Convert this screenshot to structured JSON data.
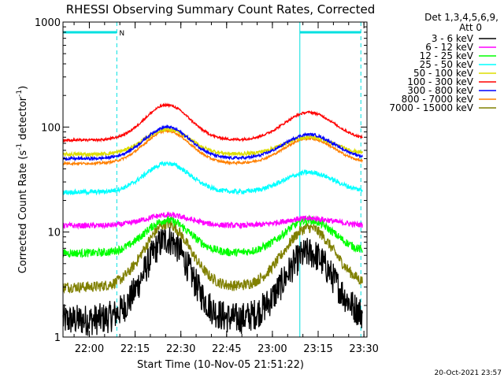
{
  "chart_data": {
    "type": "line",
    "title": "RHESSI Observing Summary Count Rates, Corrected",
    "xlabel": "Start Time (10-Nov-05 21:51:22)",
    "ylabel_main": "Corrected Count Rate (s",
    "ylabel_sup1": "-1",
    "ylabel_mid": " detector",
    "ylabel_sup2": "-1",
    "ylabel_end": ")",
    "yscale": "log",
    "ylim": [
      1,
      1000
    ],
    "xlim": [
      "21:51:22",
      "23:31:00"
    ],
    "x_ticks": [
      "22:00",
      "22:15",
      "22:30",
      "22:45",
      "23:00",
      "23:15",
      "23:30"
    ],
    "y_ticks": [
      "1",
      "10",
      "100",
      "1000"
    ],
    "legend_header": [
      "Det 1,3,4,5,6,9,",
      "Att 0"
    ],
    "legend_placement": "right",
    "timestamp": "20-Oct-2021 23:57",
    "flag_label": "N",
    "markers": {
      "night_bar_1": [
        "21:51:22",
        "22:09:00"
      ],
      "night_bar_2": [
        "23:09:00",
        "23:29:00"
      ],
      "dashed_lines": [
        "22:09:00",
        "23:29:00"
      ],
      "solid_lines": [
        "21:51:22",
        "23:09:00"
      ],
      "color": "#00e0e0"
    },
    "series": [
      {
        "name": "3 - 6 keV",
        "color": "#000000",
        "base": 1.45,
        "peak1": 8.5,
        "peak2": 6.3,
        "jitter": 0.35
      },
      {
        "name": "6 - 12 keV",
        "color": "#ff00ff",
        "base": 11.5,
        "peak1": 14.5,
        "peak2": 13.5,
        "jitter": 0.06
      },
      {
        "name": "12 - 25 keV",
        "color": "#00ff00",
        "base": 6.3,
        "peak1": 13.0,
        "peak2": 13.0,
        "jitter": 0.09
      },
      {
        "name": "25 - 50 keV",
        "color": "#00ffff",
        "base": 24,
        "peak1": 45,
        "peak2": 37,
        "jitter": 0.05
      },
      {
        "name": "50 - 100 keV",
        "color": "#dddd00",
        "base": 55,
        "peak1": 95,
        "peak2": 80,
        "jitter": 0.04
      },
      {
        "name": "100 - 300 keV",
        "color": "#ff0000",
        "base": 75,
        "peak1": 162,
        "peak2": 138,
        "jitter": 0.025
      },
      {
        "name": "300 - 800 keV",
        "color": "#0000ff",
        "base": 50,
        "peak1": 100,
        "peak2": 85,
        "jitter": 0.03
      },
      {
        "name": "800 - 7000 keV",
        "color": "#ff8000",
        "base": 45,
        "peak1": 92,
        "peak2": 78,
        "jitter": 0.025
      },
      {
        "name": "7000 - 15000 keV",
        "color": "#808000",
        "base": 3.0,
        "peak1": 12.0,
        "peak2": 11.0,
        "jitter": 0.12
      }
    ]
  }
}
